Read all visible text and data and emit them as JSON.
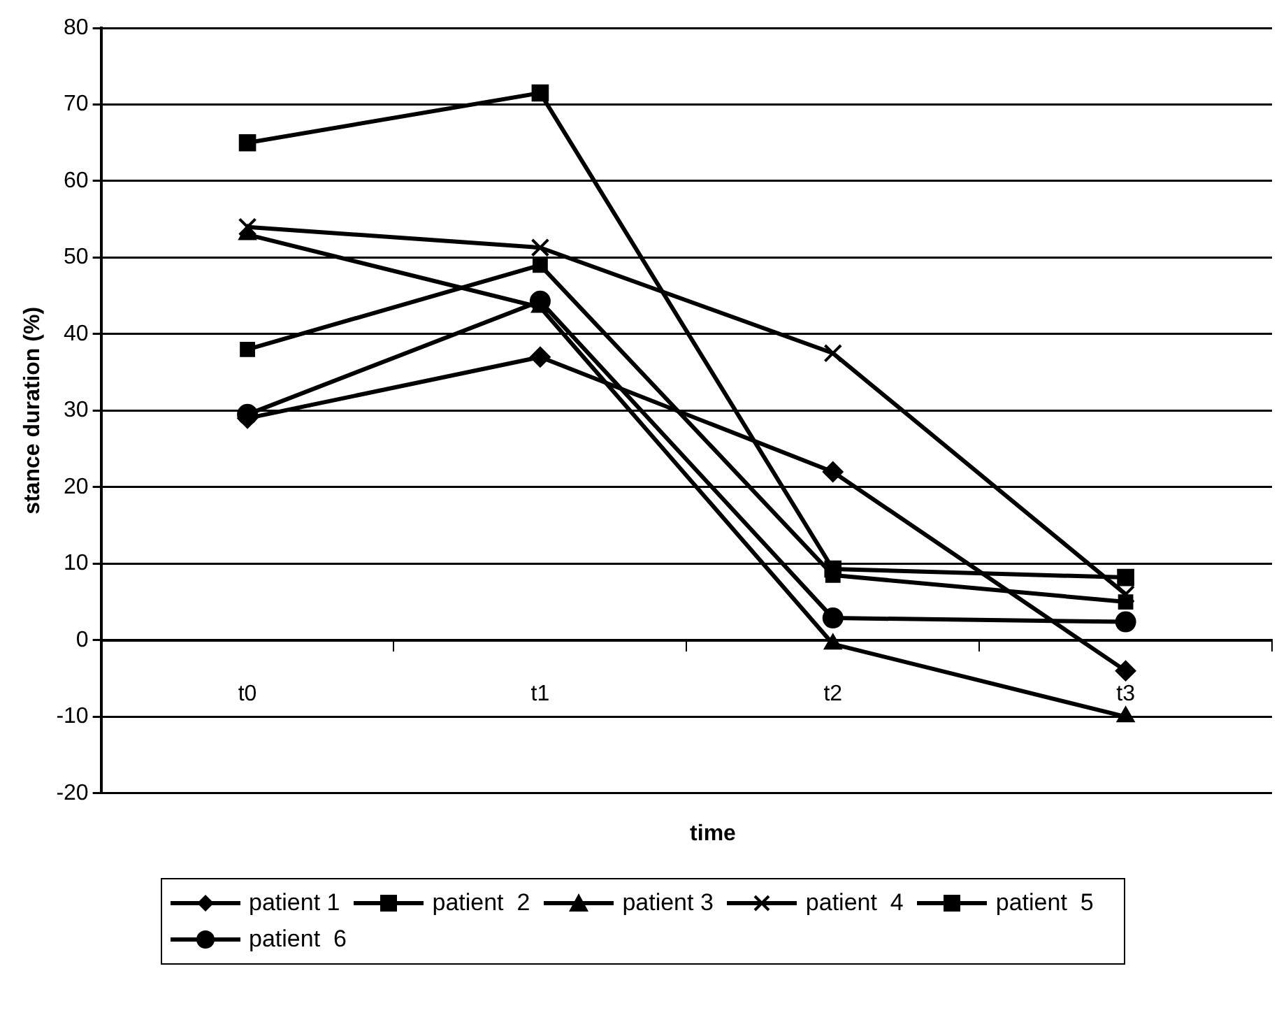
{
  "chart_data": {
    "type": "line",
    "xlabel": "time",
    "ylabel": "stance duration (%)",
    "categories": [
      "t0",
      "t1",
      "t2",
      "t3"
    ],
    "ylim": [
      -20,
      80
    ],
    "yticks": [
      -20,
      -10,
      0,
      10,
      20,
      30,
      40,
      50,
      60,
      70,
      80
    ],
    "grid": "y",
    "legend": "bottom",
    "line_style": "solid",
    "series": [
      {
        "name": "patient 1",
        "color": "#000000",
        "marker": "diamond",
        "values": [
          29,
          37,
          22,
          -4
        ]
      },
      {
        "name": "patient  2",
        "color": "#000000",
        "marker": "square",
        "values": [
          38,
          49,
          8.5,
          5
        ]
      },
      {
        "name": "patient 3",
        "color": "#000000",
        "marker": "triangle",
        "values": [
          53,
          43.5,
          -0.5,
          -10
        ]
      },
      {
        "name": "patient  4",
        "color": "#000000",
        "marker": "cross",
        "values": [
          54,
          51.3,
          37.5,
          6
        ]
      },
      {
        "name": "patient  5",
        "color": "#000000",
        "marker": "square",
        "values": [
          65,
          71.5,
          9.3,
          8.2
        ]
      },
      {
        "name": "patient  6",
        "color": "#000000",
        "marker": "circle",
        "values": [
          29.5,
          44.3,
          2.9,
          2.4
        ]
      }
    ]
  }
}
